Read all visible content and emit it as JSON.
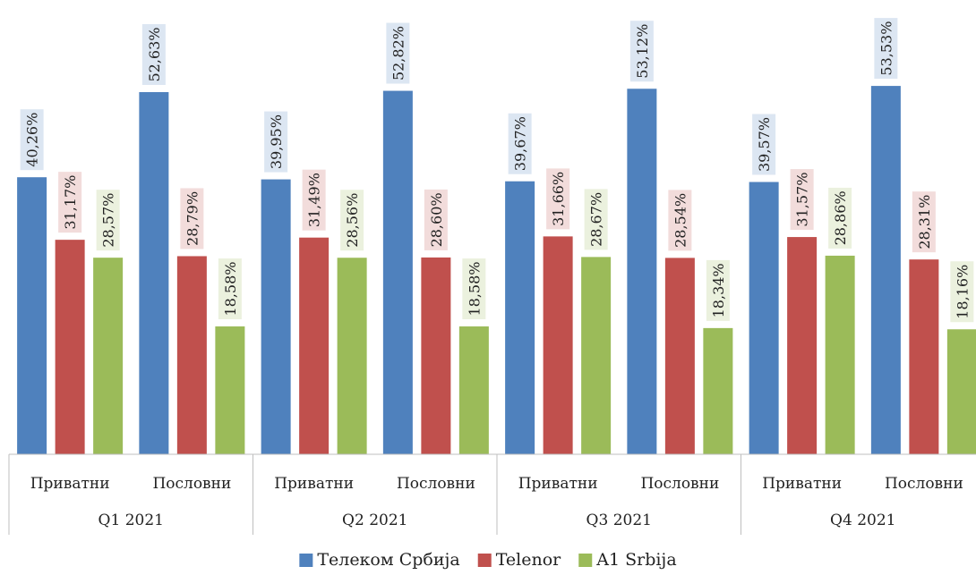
{
  "chart_data": {
    "type": "bar",
    "groups": [
      "Q1 2021",
      "Q2 2021",
      "Q3 2021",
      "Q4 2021"
    ],
    "subcategories": [
      "Приватни",
      "Пословни"
    ],
    "series": [
      {
        "name": "Телеком Србија",
        "color": "#4f81bd",
        "label_bg": "#dce6f2",
        "values": [
          40.26,
          52.63,
          39.95,
          52.82,
          39.67,
          53.12,
          39.57,
          53.53
        ],
        "labels": [
          "40,26%",
          "52,63%",
          "39,95%",
          "52,82%",
          "39,67%",
          "53,12%",
          "39,57%",
          "53,53%"
        ]
      },
      {
        "name": "Telenor",
        "color": "#c0504d",
        "label_bg": "#f2dcdb",
        "values": [
          31.17,
          28.79,
          31.49,
          28.6,
          31.66,
          28.54,
          31.57,
          28.31
        ],
        "labels": [
          "31,17%",
          "28,79%",
          "31,49%",
          "28,60%",
          "31,66%",
          "28,54%",
          "31,57%",
          "28,31%"
        ]
      },
      {
        "name": "A1 Srbija",
        "color": "#9bbb59",
        "label_bg": "#ebf1de",
        "values": [
          28.57,
          18.58,
          28.56,
          18.58,
          28.67,
          18.34,
          28.86,
          18.16
        ],
        "labels": [
          "28,57%",
          "18,58%",
          "28,56%",
          "18,58%",
          "28,67%",
          "18,34%",
          "28,86%",
          "18,16%"
        ]
      }
    ],
    "ylim": [
      0,
      80
    ],
    "grid": false,
    "legend_position": "bottom"
  }
}
